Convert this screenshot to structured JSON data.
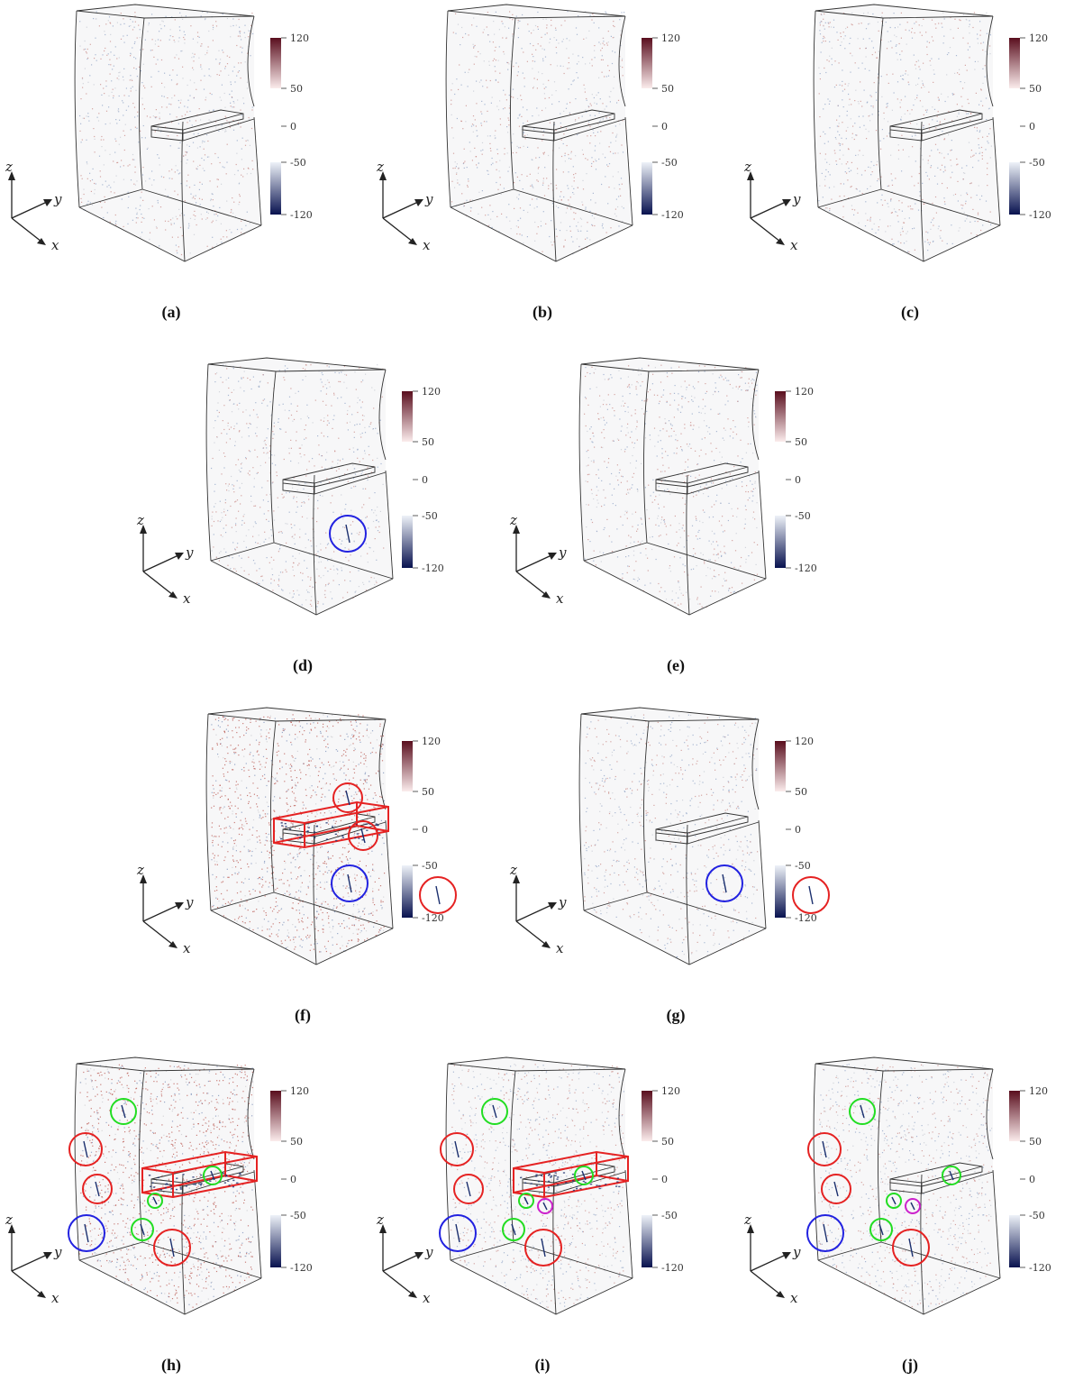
{
  "colorbar": {
    "ticks": [
      "120",
      "50",
      "0",
      "-50",
      "-120"
    ],
    "pos_color_top": "#5a0e1e",
    "pos_color_bottom": "#fbecec",
    "neg_color_top": "#eef2f8",
    "neg_color_bottom": "#08124f"
  },
  "axes": {
    "x": "x",
    "y": "y",
    "z": "z"
  },
  "panels": [
    {
      "label": "(a)",
      "density": "light",
      "redbox": false,
      "circles": []
    },
    {
      "label": "(b)",
      "density": "light",
      "redbox": false,
      "circles": []
    },
    {
      "label": "(c)",
      "density": "light",
      "redbox": false,
      "circles": []
    },
    {
      "label": "(d)",
      "density": "light",
      "redbox": false,
      "circles": [
        {
          "color": "blue"
        }
      ]
    },
    {
      "label": "(e)",
      "density": "light",
      "redbox": false,
      "circles": []
    },
    {
      "label": "(f)",
      "density": "heavy",
      "redbox": true,
      "circles": [
        {
          "color": "red"
        },
        {
          "color": "red"
        },
        {
          "color": "blue"
        },
        {
          "color": "red"
        }
      ]
    },
    {
      "label": "(g)",
      "density": "light",
      "redbox": false,
      "circles": [
        {
          "color": "blue"
        },
        {
          "color": "red"
        }
      ]
    },
    {
      "label": "(h)",
      "density": "heavy",
      "redbox": true,
      "circles": [
        {
          "color": "green"
        },
        {
          "color": "green"
        },
        {
          "color": "red"
        },
        {
          "color": "red"
        },
        {
          "color": "green"
        },
        {
          "color": "blue"
        },
        {
          "color": "green"
        },
        {
          "color": "red"
        }
      ]
    },
    {
      "label": "(i)",
      "density": "medium",
      "redbox": true,
      "circles": [
        {
          "color": "green"
        },
        {
          "color": "green"
        },
        {
          "color": "red"
        },
        {
          "color": "red"
        },
        {
          "color": "green"
        },
        {
          "color": "magenta"
        },
        {
          "color": "blue"
        },
        {
          "color": "green"
        },
        {
          "color": "red"
        }
      ]
    },
    {
      "label": "(j)",
      "density": "medium",
      "redbox": false,
      "circles": [
        {
          "color": "green"
        },
        {
          "color": "green"
        },
        {
          "color": "red"
        },
        {
          "color": "red"
        },
        {
          "color": "green"
        },
        {
          "color": "magenta"
        },
        {
          "color": "blue"
        },
        {
          "color": "green"
        },
        {
          "color": "red"
        }
      ]
    }
  ]
}
